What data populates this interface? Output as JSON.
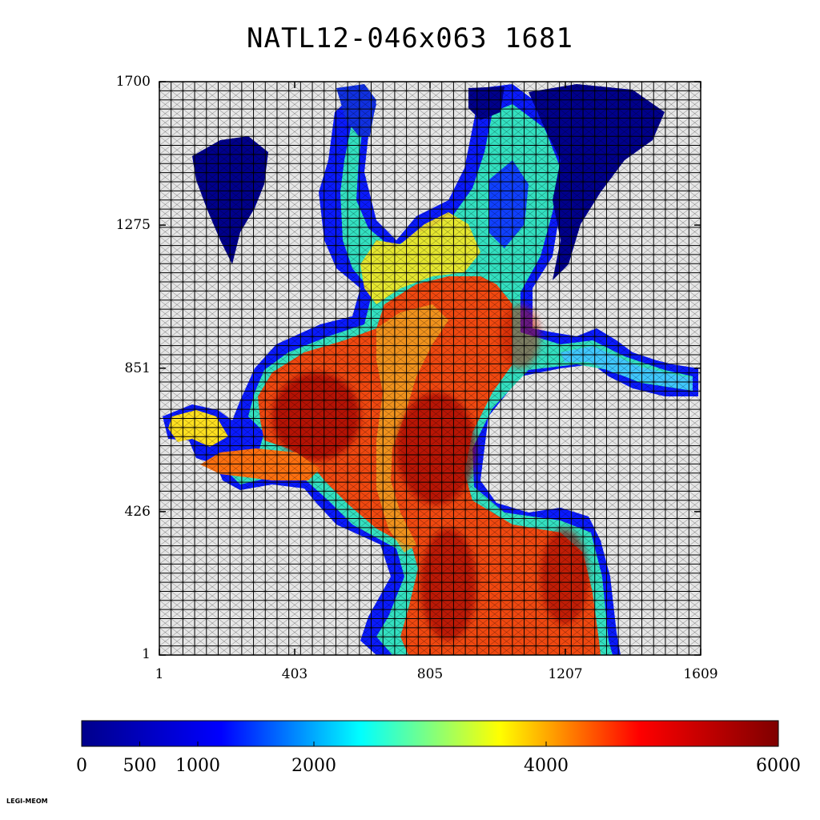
{
  "title": "NATL12-046x063 1681",
  "footer": "LEGI-MEOM",
  "chart_data": {
    "type": "heatmap",
    "title": "NATL12-046x063 1681",
    "x_ticks": [
      "1",
      "403",
      "805",
      "1207",
      "1609"
    ],
    "y_ticks": [
      "1",
      "426",
      "851",
      "1275",
      "1700"
    ],
    "xlim": [
      1,
      1609
    ],
    "ylim": [
      1,
      1700
    ],
    "grid": {
      "subdomains_x": 46,
      "subdomains_y": 63
    },
    "colorbar": {
      "ticks": [
        "0",
        "500",
        "1000",
        "2000",
        "4000",
        "6000"
      ],
      "range": [
        0,
        6000
      ],
      "colormap": [
        "#00008b",
        "#0000ff",
        "#00ffff",
        "#ffff00",
        "#ff0000",
        "#7f0000"
      ]
    },
    "land_color": "#e6e6e6",
    "grid_color": "#000000"
  }
}
